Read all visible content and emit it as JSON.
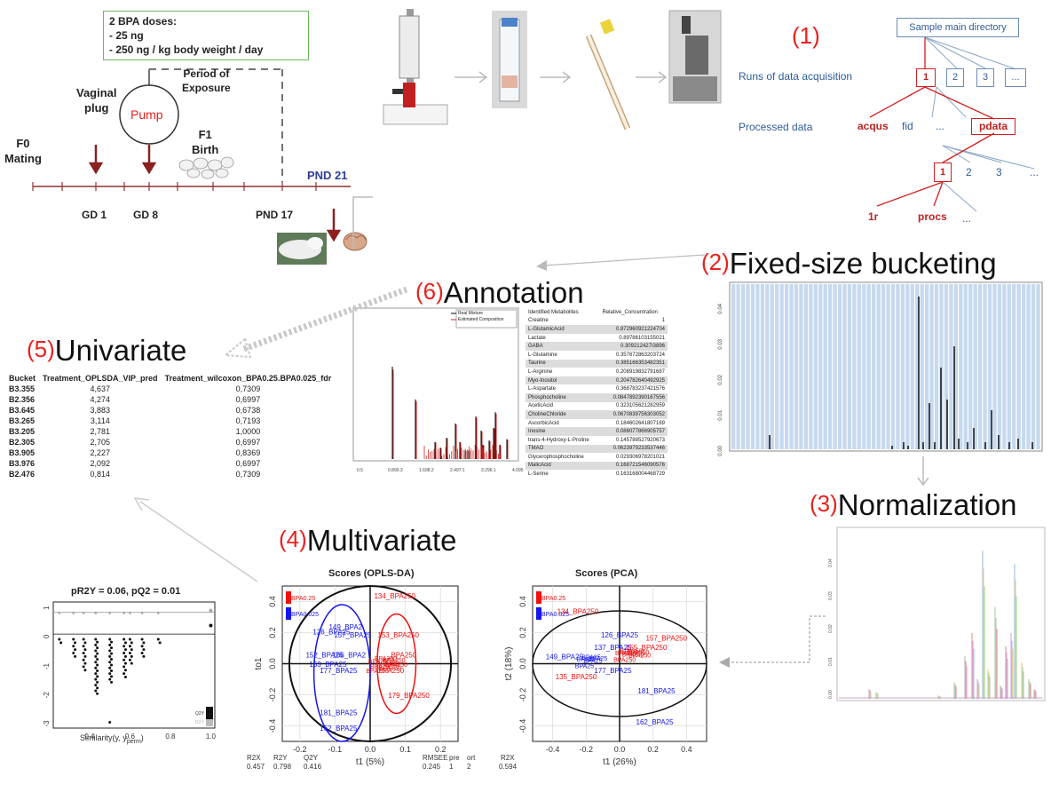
{
  "dose_box": {
    "title": "2 BPA doses:",
    "line1": "- 25 ng",
    "line2": "- 250 ng / kg body weight / day"
  },
  "timeline": {
    "period_label": "Period of\nExposure",
    "pump": "Pump",
    "vaginal_plug": "Vaginal\nplug",
    "f0_mating": "F0\nMating",
    "f1_birth": "F1\nBirth",
    "pnd21": "PND 21",
    "gd1": "GD 1",
    "gd8": "GD 8",
    "pnd17": "PND 17"
  },
  "steps": {
    "s1_num": "(1)",
    "s2_num": "(2)",
    "s2_title": "Fixed-size bucketing",
    "s3_num": "(3)",
    "s3_title": "Normalization",
    "s4_num": "(4)",
    "s4_title": "Multivariate",
    "s5_num": "(5)",
    "s5_title": "Univariate",
    "s6_num": "(6)",
    "s6_title": "Annotation"
  },
  "tree": {
    "main": "Sample main directory",
    "runs_label": "Runs of data acquisition",
    "processed_label": "Processed data",
    "n1": "1",
    "n2": "2",
    "n3": "3",
    "nd": "...",
    "acqus": "acqus",
    "fid": "fid",
    "dots": "...",
    "pdata": "pdata",
    "p1": "1",
    "p2": "2",
    "p3": "3",
    "pdots": "...",
    "r1": "1r",
    "procs": "procs",
    "rdots": "..."
  },
  "univariate": {
    "headers": [
      "Bucket",
      "Treatment_OPLSDA_VIP_pred",
      "Treatment_wilcoxon_BPA0.25.BPA0.025_fdr"
    ],
    "rows": [
      [
        "B3.355",
        "4,637",
        "0,7309"
      ],
      [
        "B2.356",
        "4,274",
        "0,6997"
      ],
      [
        "B3.645",
        "3,883",
        "0,6738"
      ],
      [
        "B3.265",
        "3,114",
        "0,7193"
      ],
      [
        "B3.205",
        "2,781",
        "1,0000"
      ],
      [
        "B2.305",
        "2,705",
        "0,6997"
      ],
      [
        "B3.905",
        "2,227",
        "0,8369"
      ],
      [
        "B3.976",
        "2,092",
        "0,6997"
      ],
      [
        "B2.476",
        "0,814",
        "0,7309"
      ]
    ]
  },
  "annotation": {
    "legend": [
      "Real Mixture",
      "Estimated Composition"
    ],
    "xticks": [
      "0.5",
      "0.899.3",
      "1.698.2",
      "2.497.1",
      "3.296.1",
      "4.095"
    ],
    "headers": [
      "Identified Metabolites",
      "Relative_Concentration"
    ],
    "rows": [
      [
        "Creatine",
        "1"
      ],
      [
        "L-GlutamicAcid",
        "0.872960921224704"
      ],
      [
        "Lactate",
        "0.89786103155021"
      ],
      [
        "GABA",
        "0.309212427I3896"
      ],
      [
        "L-Glutamine",
        "0.357672863203724"
      ],
      [
        "Taurine",
        "0.385166353482351"
      ],
      [
        "L-Arginine",
        "0.208919832791687"
      ],
      [
        "Myo-Inositol",
        "0.204782640492925"
      ],
      [
        "L-Aspartate",
        "0.368783237421576"
      ],
      [
        "Phosphocholine",
        "0.0847892390167556"
      ],
      [
        "AceticAcid",
        "0.323105621282959"
      ],
      [
        "CholineChloride",
        "0.0670839756303052"
      ],
      [
        "AscorbicAcid",
        "0.184602641807169"
      ],
      [
        "Inosine",
        "0.086077866905757"
      ],
      [
        "trans-4-Hydroxy-L-Proline",
        "0.145788527920673"
      ],
      [
        "TMAO",
        "0.0623979233537446"
      ],
      [
        "Glycerophosphocholine",
        "0.029306978201021"
      ],
      [
        "MalicAcid",
        "0.168721546090576"
      ],
      [
        "L-Serine",
        "0.163168004468729"
      ]
    ]
  },
  "perm": {
    "title": "pR2Y = 0.06, pQ2 = 0.01",
    "xlabel": "Similarity(y, y",
    "xlabel_sub": "perm",
    "xlabel_end": ")",
    "xticks": [
      "0.4",
      "0.6",
      "0.8",
      "1.0"
    ],
    "yticks": [
      "1",
      "0",
      "-1",
      "-2",
      "-3"
    ],
    "legend": [
      "R2Y",
      "Q2Y"
    ]
  },
  "oplsda": {
    "title": "Scores (OPLS-DA)",
    "xlabel": "t1 (5%)",
    "ylabel": "to1",
    "xticks": [
      "-0.2",
      "-0.1",
      "0.0",
      "0.1",
      "0.2"
    ],
    "yticks": [
      "0.4",
      "0.2",
      "0.0",
      "-0.2",
      "-0.4"
    ],
    "legend": [
      "BPA0.25",
      "BPA0.025"
    ],
    "stats_headers": [
      "R2X",
      "R2Y",
      "Q2Y",
      "RMSEE",
      "pre",
      "ort"
    ],
    "stats_values": [
      "0.457",
      "0.798",
      "0.416",
      "0.245",
      "1",
      "2"
    ],
    "labels": [
      {
        "t": "134_BPA250",
        "c": "red"
      },
      {
        "t": "149_BPA2",
        "c": "blue"
      },
      {
        "t": "126_BPA25",
        "c": "blue"
      },
      {
        "t": "157_BPA25",
        "c": "blue"
      },
      {
        "t": "153_BPA250",
        "c": "red"
      },
      {
        "t": "152_BPA25",
        "c": "blue"
      },
      {
        "t": "166_BPA2",
        "c": "blue"
      },
      {
        "t": "_BPA250",
        "c": "red"
      },
      {
        "t": "163_BPA25",
        "c": "blue"
      },
      {
        "t": "177_BPA25",
        "c": "blue"
      },
      {
        "t": "BPA250",
        "c": "red"
      },
      {
        "t": "179_BPA250",
        "c": "red"
      },
      {
        "t": "181_BPA25",
        "c": "blue"
      },
      {
        "t": "162_BPA25",
        "c": "blue"
      }
    ]
  },
  "pca": {
    "title": "Scores (PCA)",
    "xlabel": "t1 (26%)",
    "ylabel": "t2 (18%)",
    "xticks": [
      "-0.4",
      "-0.2",
      "0.0",
      "0.2",
      "0.4"
    ],
    "yticks": [
      "0.4",
      "0.2",
      "0.0",
      "-0.2",
      "-0.4"
    ],
    "legend": [
      "BPA0.25",
      "BPA0.025"
    ],
    "stats_header": "R2X",
    "stats_value": "0.594",
    "labels": [
      {
        "t": "134_BPA250",
        "c": "red"
      },
      {
        "t": "126_BPA25",
        "c": "blue"
      },
      {
        "t": "157_BPA250",
        "c": "red"
      },
      {
        "t": "137_BPA25",
        "c": "blue"
      },
      {
        "t": "155_BPA250",
        "c": "red"
      },
      {
        "t": "149_BPA25",
        "c": "blue"
      },
      {
        "t": "177_BPA25",
        "c": "blue"
      },
      {
        "t": "135_BPA250",
        "c": "red"
      },
      {
        "t": "181_BPA25",
        "c": "blue"
      },
      {
        "t": "162_BPA25",
        "c": "blue"
      }
    ]
  },
  "colors": {
    "accent_red": "#e8231e",
    "folder_blue": "#2f5c9a",
    "bucket_blue": "#c6d9ef"
  }
}
